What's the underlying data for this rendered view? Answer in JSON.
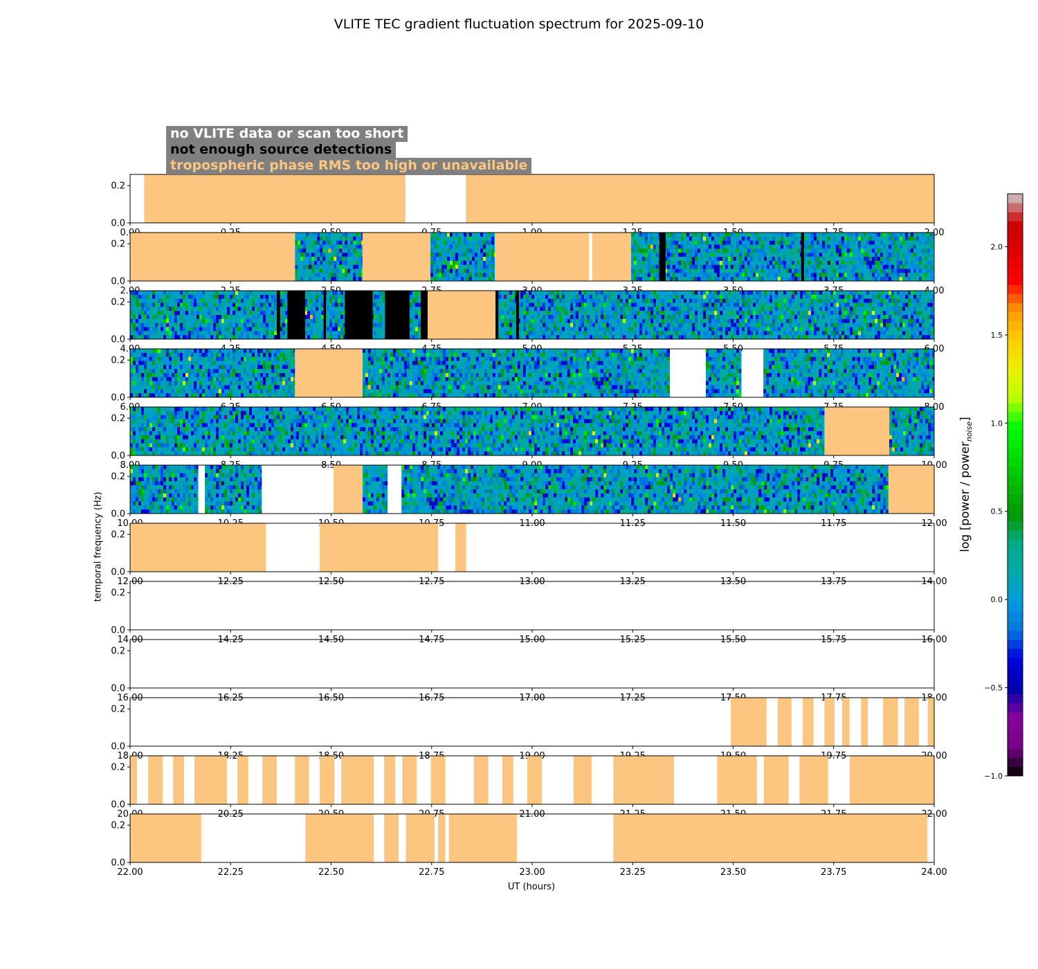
{
  "chart_data": {
    "type": "heatmap",
    "title": "VLITE TEC gradient fluctuation spectrum for 2025-09-10",
    "xlabel": "UT (hours)",
    "ylabel": "temporal frequency (Hz)",
    "yticks": [
      "0.0",
      "0.2"
    ],
    "ylim": [
      0,
      0.26
    ],
    "legend": {
      "items": [
        {
          "label": "no VLITE data or scan too short",
          "color": "#ffffff"
        },
        {
          "label": "not enough source detections",
          "color": "#000000"
        },
        {
          "label": "tropospheric phase RMS too high or unavailable",
          "color": "#fdc680"
        }
      ],
      "background": "#808080",
      "placement": "top-left"
    },
    "colors": {
      "missing": "#ffffff",
      "few_detections": "#000000",
      "tropo": "#fdc680",
      "axis": "#000000"
    },
    "colorbar": {
      "label_main": "log [power / power",
      "label_sub": "noise",
      "label_end": "]",
      "range": [
        -1.0,
        2.3
      ],
      "ticks": [
        {
          "value": -1.0,
          "label": "−1.0"
        },
        {
          "value": -0.5,
          "label": "−0.5"
        },
        {
          "value": 0.0,
          "label": "0.0"
        },
        {
          "value": 0.5,
          "label": "0.5"
        },
        {
          "value": 1.0,
          "label": "1.0"
        },
        {
          "value": 1.5,
          "label": "1.5"
        },
        {
          "value": 2.0,
          "label": "2.0"
        }
      ],
      "colormap": "nipy_spectral"
    },
    "panels": [
      {
        "xrange": [
          0,
          2
        ],
        "xticks": [
          "0.00",
          "0.25",
          "0.50",
          "0.75",
          "1.00",
          "1.25",
          "1.50",
          "1.75",
          "2.00"
        ],
        "segments": [
          {
            "start": 0.035,
            "end": 0.685,
            "kind": "tropo"
          },
          {
            "start": 0.835,
            "end": 2.0,
            "kind": "tropo"
          }
        ]
      },
      {
        "xrange": [
          2,
          4
        ],
        "xticks": [
          "2.00",
          "2.25",
          "2.50",
          "2.75",
          "3.00",
          "3.25",
          "3.50",
          "3.75",
          "4.00"
        ],
        "segments": [
          {
            "start": 2.0,
            "end": 2.41,
            "kind": "tropo"
          },
          {
            "start": 2.41,
            "end": 2.578,
            "kind": "spectrum"
          },
          {
            "start": 2.578,
            "end": 2.747,
            "kind": "tropo"
          },
          {
            "start": 2.747,
            "end": 2.907,
            "kind": "spectrum"
          },
          {
            "start": 2.907,
            "end": 3.141,
            "kind": "tropo"
          },
          {
            "start": 3.149,
            "end": 3.246,
            "kind": "tropo"
          },
          {
            "start": 3.246,
            "end": 4.0,
            "kind": "spectrum"
          },
          {
            "start": 3.316,
            "end": 3.332,
            "kind": "few"
          },
          {
            "start": 3.669,
            "end": 3.676,
            "kind": "few"
          }
        ]
      },
      {
        "xrange": [
          4,
          6
        ],
        "xticks": [
          "4.00",
          "4.25",
          "4.50",
          "4.75",
          "5.00",
          "5.25",
          "5.50",
          "5.75",
          "6.00"
        ],
        "segments": [
          {
            "start": 4.0,
            "end": 4.74,
            "kind": "spectrum"
          },
          {
            "start": 4.365,
            "end": 4.373,
            "kind": "few"
          },
          {
            "start": 4.391,
            "end": 4.435,
            "kind": "few"
          },
          {
            "start": 4.481,
            "end": 4.487,
            "kind": "few"
          },
          {
            "start": 4.534,
            "end": 4.603,
            "kind": "few"
          },
          {
            "start": 4.634,
            "end": 4.695,
            "kind": "few"
          },
          {
            "start": 4.723,
            "end": 4.74,
            "kind": "few"
          },
          {
            "start": 4.74,
            "end": 4.909,
            "kind": "tropo"
          },
          {
            "start": 4.909,
            "end": 6.0,
            "kind": "spectrum"
          },
          {
            "start": 4.909,
            "end": 4.916,
            "kind": "few"
          },
          {
            "start": 4.96,
            "end": 4.967,
            "kind": "few"
          }
        ]
      },
      {
        "xrange": [
          6,
          8
        ],
        "xticks": [
          "6.00",
          "6.25",
          "6.50",
          "6.75",
          "7.00",
          "7.25",
          "7.50",
          "7.75",
          "8.00"
        ],
        "segments": [
          {
            "start": 6.0,
            "end": 6.41,
            "kind": "spectrum"
          },
          {
            "start": 6.41,
            "end": 6.578,
            "kind": "tropo"
          },
          {
            "start": 6.578,
            "end": 7.342,
            "kind": "spectrum"
          },
          {
            "start": 7.432,
            "end": 7.52,
            "kind": "spectrum"
          },
          {
            "start": 7.575,
            "end": 8.0,
            "kind": "spectrum"
          }
        ]
      },
      {
        "xrange": [
          8,
          10
        ],
        "xticks": [
          "8.00",
          "8.25",
          "8.50",
          "8.75",
          "9.00",
          "9.25",
          "9.50",
          "9.75",
          "10.00"
        ],
        "segments": [
          {
            "start": 8.0,
            "end": 9.727,
            "kind": "spectrum"
          },
          {
            "start": 9.727,
            "end": 9.888,
            "kind": "tropo"
          },
          {
            "start": 9.888,
            "end": 10.0,
            "kind": "spectrum"
          }
        ]
      },
      {
        "xrange": [
          10,
          12
        ],
        "xticks": [
          "10.00",
          "10.25",
          "10.50",
          "10.75",
          "11.00",
          "11.25",
          "11.50",
          "11.75",
          "12.00"
        ],
        "segments": [
          {
            "start": 10.0,
            "end": 10.169,
            "kind": "spectrum"
          },
          {
            "start": 10.186,
            "end": 10.327,
            "kind": "spectrum"
          },
          {
            "start": 10.506,
            "end": 10.578,
            "kind": "tropo"
          },
          {
            "start": 10.578,
            "end": 10.64,
            "kind": "spectrum"
          },
          {
            "start": 10.675,
            "end": 11.886,
            "kind": "spectrum"
          },
          {
            "start": 11.886,
            "end": 12.0,
            "kind": "tropo"
          }
        ]
      },
      {
        "xrange": [
          12,
          14
        ],
        "xticks": [
          "12.00",
          "12.25",
          "12.50",
          "12.75",
          "13.00",
          "13.25",
          "13.50",
          "13.75",
          "14.00"
        ],
        "segments": [
          {
            "start": 12.0,
            "end": 12.338,
            "kind": "tropo"
          },
          {
            "start": 12.472,
            "end": 12.766,
            "kind": "tropo"
          },
          {
            "start": 12.809,
            "end": 12.836,
            "kind": "tropo"
          }
        ]
      },
      {
        "xrange": [
          14,
          16
        ],
        "xticks": [
          "14.00",
          "14.25",
          "14.50",
          "14.75",
          "15.00",
          "15.25",
          "15.50",
          "15.75",
          "16.00"
        ],
        "segments": []
      },
      {
        "xrange": [
          16,
          18
        ],
        "xticks": [
          "16.00",
          "16.25",
          "16.50",
          "16.75",
          "17.00",
          "17.25",
          "17.50",
          "17.75",
          "18.00"
        ],
        "segments": []
      },
      {
        "xrange": [
          18,
          20
        ],
        "xticks": [
          "18.00",
          "18.25",
          "18.50",
          "18.75",
          "19.00",
          "19.25",
          "19.50",
          "19.75",
          "20.00"
        ],
        "segments": [
          {
            "start": 19.494,
            "end": 19.583,
            "kind": "tropo"
          },
          {
            "start": 19.611,
            "end": 19.645,
            "kind": "tropo"
          },
          {
            "start": 19.673,
            "end": 19.7,
            "kind": "tropo"
          },
          {
            "start": 19.727,
            "end": 19.752,
            "kind": "tropo"
          },
          {
            "start": 19.771,
            "end": 19.789,
            "kind": "tropo"
          },
          {
            "start": 19.818,
            "end": 19.835,
            "kind": "tropo"
          },
          {
            "start": 19.873,
            "end": 19.91,
            "kind": "tropo"
          },
          {
            "start": 19.926,
            "end": 19.962,
            "kind": "tropo"
          },
          {
            "start": 19.984,
            "end": 20.0,
            "kind": "tropo"
          }
        ]
      },
      {
        "xrange": [
          20,
          22
        ],
        "xticks": [
          "20.00",
          "20.25",
          "20.50",
          "20.75",
          "21.00",
          "21.25",
          "21.50",
          "21.75",
          "22.00"
        ],
        "segments": [
          {
            "start": 20.0,
            "end": 20.017,
            "kind": "tropo"
          },
          {
            "start": 20.045,
            "end": 20.081,
            "kind": "tropo"
          },
          {
            "start": 20.107,
            "end": 20.134,
            "kind": "tropo"
          },
          {
            "start": 20.16,
            "end": 20.241,
            "kind": "tropo"
          },
          {
            "start": 20.267,
            "end": 20.294,
            "kind": "tropo"
          },
          {
            "start": 20.329,
            "end": 20.365,
            "kind": "tropo"
          },
          {
            "start": 20.41,
            "end": 20.445,
            "kind": "tropo"
          },
          {
            "start": 20.472,
            "end": 20.508,
            "kind": "tropo"
          },
          {
            "start": 20.525,
            "end": 20.606,
            "kind": "tropo"
          },
          {
            "start": 20.632,
            "end": 20.659,
            "kind": "tropo"
          },
          {
            "start": 20.677,
            "end": 20.713,
            "kind": "tropo"
          },
          {
            "start": 20.748,
            "end": 20.784,
            "kind": "tropo"
          },
          {
            "start": 20.855,
            "end": 20.891,
            "kind": "tropo"
          },
          {
            "start": 20.926,
            "end": 20.953,
            "kind": "tropo"
          },
          {
            "start": 20.988,
            "end": 21.024,
            "kind": "tropo"
          },
          {
            "start": 21.103,
            "end": 21.148,
            "kind": "tropo"
          },
          {
            "start": 21.202,
            "end": 21.353,
            "kind": "tropo"
          },
          {
            "start": 21.46,
            "end": 21.559,
            "kind": "tropo"
          },
          {
            "start": 21.576,
            "end": 21.638,
            "kind": "tropo"
          },
          {
            "start": 21.665,
            "end": 21.736,
            "kind": "tropo"
          },
          {
            "start": 21.79,
            "end": 22.0,
            "kind": "tropo"
          }
        ]
      },
      {
        "xrange": [
          22,
          24
        ],
        "xticks": [
          "22.00",
          "22.25",
          "22.50",
          "22.75",
          "23.00",
          "23.25",
          "23.50",
          "23.75",
          "24.00"
        ],
        "segments": [
          {
            "start": 22.0,
            "end": 22.177,
            "kind": "tropo"
          },
          {
            "start": 22.436,
            "end": 22.606,
            "kind": "tropo"
          },
          {
            "start": 22.632,
            "end": 22.668,
            "kind": "tropo"
          },
          {
            "start": 22.686,
            "end": 22.757,
            "kind": "tropo"
          },
          {
            "start": 22.766,
            "end": 22.784,
            "kind": "tropo"
          },
          {
            "start": 22.793,
            "end": 22.962,
            "kind": "tropo"
          },
          {
            "start": 23.202,
            "end": 23.983,
            "kind": "tropo"
          }
        ]
      }
    ]
  }
}
